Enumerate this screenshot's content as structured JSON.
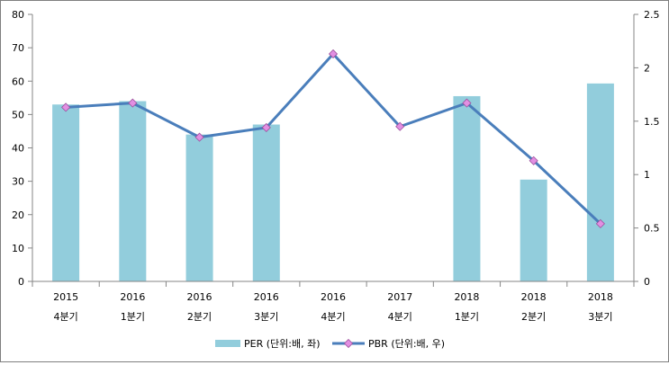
{
  "chart_data": {
    "type": "bar+line",
    "categories": [
      {
        "year": "2015",
        "quarter": "4분기"
      },
      {
        "year": "2016",
        "quarter": "1분기"
      },
      {
        "year": "2016",
        "quarter": "2분기"
      },
      {
        "year": "2016",
        "quarter": "3분기"
      },
      {
        "year": "2016",
        "quarter": "4분기"
      },
      {
        "year": "2017",
        "quarter": "4분기"
      },
      {
        "year": "2018",
        "quarter": "1분기"
      },
      {
        "year": "2018",
        "quarter": "2분기"
      },
      {
        "year": "2018",
        "quarter": "3분기"
      }
    ],
    "series": [
      {
        "name": "PER (단위:배, 좌)",
        "type": "bar",
        "axis": "left",
        "color": "#92cddc",
        "values": [
          53,
          54,
          44,
          47,
          null,
          null,
          55.5,
          30.5,
          59.3
        ]
      },
      {
        "name": "PBR (단위:배, 우)",
        "type": "line",
        "axis": "right",
        "color": "#4a7ebb",
        "marker_color": "#e28fe2",
        "values": [
          1.63,
          1.67,
          1.35,
          1.44,
          2.13,
          1.45,
          1.67,
          1.13,
          0.54
        ]
      }
    ],
    "y_left": {
      "min": 0,
      "max": 80,
      "ticks": [
        0,
        10,
        20,
        30,
        40,
        50,
        60,
        70,
        80
      ]
    },
    "y_right": {
      "min": 0,
      "max": 2.5,
      "ticks": [
        "0",
        "0.5",
        "1",
        "1.5",
        "2",
        "2.5"
      ]
    },
    "legend_position": "bottom",
    "grid": false
  }
}
